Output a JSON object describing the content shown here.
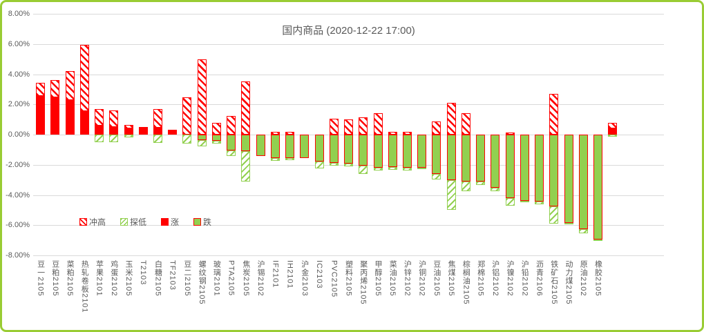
{
  "title": "国内商品 (2020-12-22 17:00)",
  "legend": [
    {
      "label": "冲高",
      "swatch": "surge"
    },
    {
      "label": "探低",
      "swatch": "dip"
    },
    {
      "label": "涨",
      "swatch": "rise"
    },
    {
      "label": "跌",
      "swatch": "fall"
    }
  ],
  "y_axis": {
    "tick_labels": [
      "8.00%",
      "6.00%",
      "4.00%",
      "2.00%",
      "0.00%",
      "-2.00%",
      "-4.00%",
      "-6.00%",
      "-8.00%"
    ],
    "tick_values": [
      8,
      6,
      4,
      2,
      0,
      -2,
      -4,
      -6,
      -8
    ]
  },
  "colors": {
    "rise_red": "#FF0000",
    "fall_green": "#92D050",
    "frame_green": "#99CC33",
    "grid_gray": "#D9D9D9",
    "text_gray": "#595959"
  },
  "chart_data": {
    "type": "bar",
    "unit": "%",
    "ylim": [
      -8,
      8
    ],
    "grid": true,
    "legend_position": "bottom-left-inside",
    "series_semantics": "涨 = close change when positive (solid red, 0→close); 跌 = close change when negative (green with red border, 0→close); 冲高 = intraday high above close (red hatch, close→high); 探低 = intraday low below close (green hatch, close→low)",
    "bars": [
      {
        "label": "豆一2105",
        "high": 3.45,
        "close": 2.55,
        "low": 0
      },
      {
        "label": "豆粕2105",
        "high": 3.6,
        "close": 2.45,
        "low": 0
      },
      {
        "label": "菜粕2105",
        "high": 4.2,
        "close": 2.3,
        "low": 0
      },
      {
        "label": "热轧卷板2101",
        "high": 5.95,
        "close": 1.55,
        "low": 0
      },
      {
        "label": "苹果2101",
        "high": 1.7,
        "close": 0.6,
        "low": -0.5
      },
      {
        "label": "鸡蛋2102",
        "high": 1.6,
        "close": 0.5,
        "low": -0.5
      },
      {
        "label": "玉米2105",
        "high": 0.65,
        "close": 0.4,
        "low": -0.2
      },
      {
        "label": "T2103",
        "high": 0.5,
        "close": 0.45,
        "low": 0
      },
      {
        "label": "白糖2105",
        "high": 1.7,
        "close": 0.45,
        "low": -0.55
      },
      {
        "label": "TF2103",
        "high": 0.3,
        "close": 0.25,
        "low": 0
      },
      {
        "label": "豆二2105",
        "high": 2.45,
        "close": 0,
        "low": -0.6
      },
      {
        "label": "螺纹钢2105",
        "high": 5.0,
        "close": -0.35,
        "low": -0.8
      },
      {
        "label": "玻璃2101",
        "high": 0.8,
        "close": -0.4,
        "low": -0.6
      },
      {
        "label": "PTA2105",
        "high": 1.25,
        "close": -1.05,
        "low": -1.4
      },
      {
        "label": "焦炭2105",
        "high": 3.5,
        "close": -1.1,
        "low": -3.1
      },
      {
        "label": "沪锡2102",
        "high": 0,
        "close": -1.4,
        "low": -1.4
      },
      {
        "label": "IF2101",
        "high": 0.2,
        "close": -1.55,
        "low": -1.75
      },
      {
        "label": "IH2101",
        "high": 0.2,
        "close": -1.55,
        "low": -1.7
      },
      {
        "label": "沪金2103",
        "high": 0,
        "close": -1.55,
        "low": -1.55
      },
      {
        "label": "IC2103",
        "high": 0,
        "close": -1.8,
        "low": -2.25
      },
      {
        "label": "PVC2105",
        "high": 1.05,
        "close": -1.85,
        "low": -2.05
      },
      {
        "label": "塑料2105",
        "high": 1.0,
        "close": -1.9,
        "low": -2.1
      },
      {
        "label": "聚丙烯2105",
        "high": 1.15,
        "close": -2.05,
        "low": -2.6
      },
      {
        "label": "甲醇2105",
        "high": 1.4,
        "close": -2.2,
        "low": -2.4
      },
      {
        "label": "菜油2105",
        "high": 0.2,
        "close": -2.15,
        "low": -2.35
      },
      {
        "label": "沪锌2102",
        "high": 0.2,
        "close": -2.2,
        "low": -2.4
      },
      {
        "label": "沪铜2102",
        "high": 0,
        "close": -2.2,
        "low": -2.3
      },
      {
        "label": "豆油2105",
        "high": 0.85,
        "close": -2.6,
        "low": -2.95
      },
      {
        "label": "焦煤2105",
        "high": 2.1,
        "close": -3.0,
        "low": -5.0
      },
      {
        "label": "棕榈油2105",
        "high": 1.4,
        "close": -3.1,
        "low": -3.75
      },
      {
        "label": "郑棉2105",
        "high": 0,
        "close": -3.1,
        "low": -3.35
      },
      {
        "label": "沪铝2102",
        "high": 0,
        "close": -3.5,
        "low": -3.75
      },
      {
        "label": "沪镍2102",
        "high": 0.15,
        "close": -4.2,
        "low": -4.7
      },
      {
        "label": "沪铅2102",
        "high": 0,
        "close": -4.4,
        "low": -4.5
      },
      {
        "label": "沥青2106",
        "high": 0,
        "close": -4.45,
        "low": -4.6
      },
      {
        "label": "铁矿石2105",
        "high": 2.7,
        "close": -4.75,
        "low": -5.9
      },
      {
        "label": "动力煤2105",
        "high": 0,
        "close": -5.85,
        "low": -5.95
      },
      {
        "label": "原油2102",
        "high": 0,
        "close": -6.25,
        "low": -6.55
      },
      {
        "label": "橡胶2105",
        "high": 0,
        "close": -6.95,
        "low": -7.0
      },
      {
        "label": "",
        "high": 0.8,
        "close": 0.4,
        "low": -0.15
      }
    ]
  }
}
